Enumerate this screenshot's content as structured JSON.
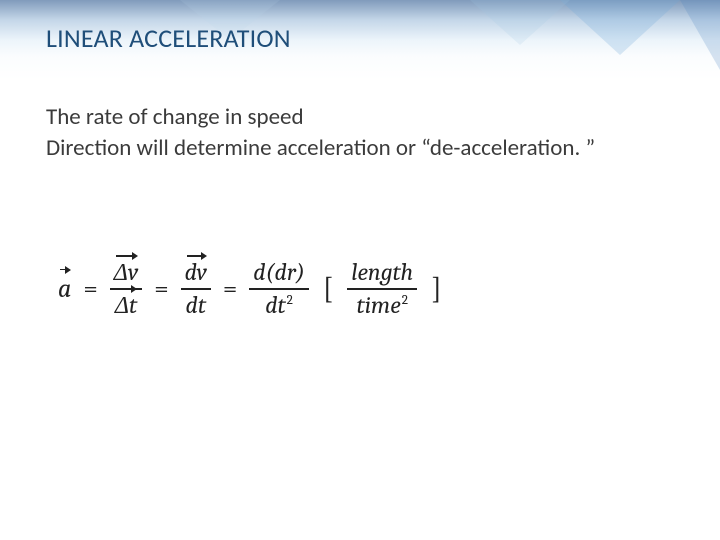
{
  "colors": {
    "title": "#1f4e79",
    "body": "#3b3b3b",
    "math": "#222222",
    "bg": "#ffffff"
  },
  "title": "LINEAR ACCELERATION",
  "body": {
    "line1": "The rate of change in speed",
    "line2": "Direction will determine acceleration or “de-acceleration. ”"
  },
  "equation": {
    "lhs_symbol": "a",
    "eq": "=",
    "term1": {
      "num_delta": "Δv",
      "den_delta": "Δt"
    },
    "term2": {
      "num": "dv",
      "den": "dt"
    },
    "term3": {
      "num": "d(dr)",
      "den_base": "dt",
      "den_exp": "2"
    },
    "unit": {
      "open": "[",
      "num": "length",
      "den_base": "time",
      "den_exp": "2",
      "close": "]"
    }
  }
}
